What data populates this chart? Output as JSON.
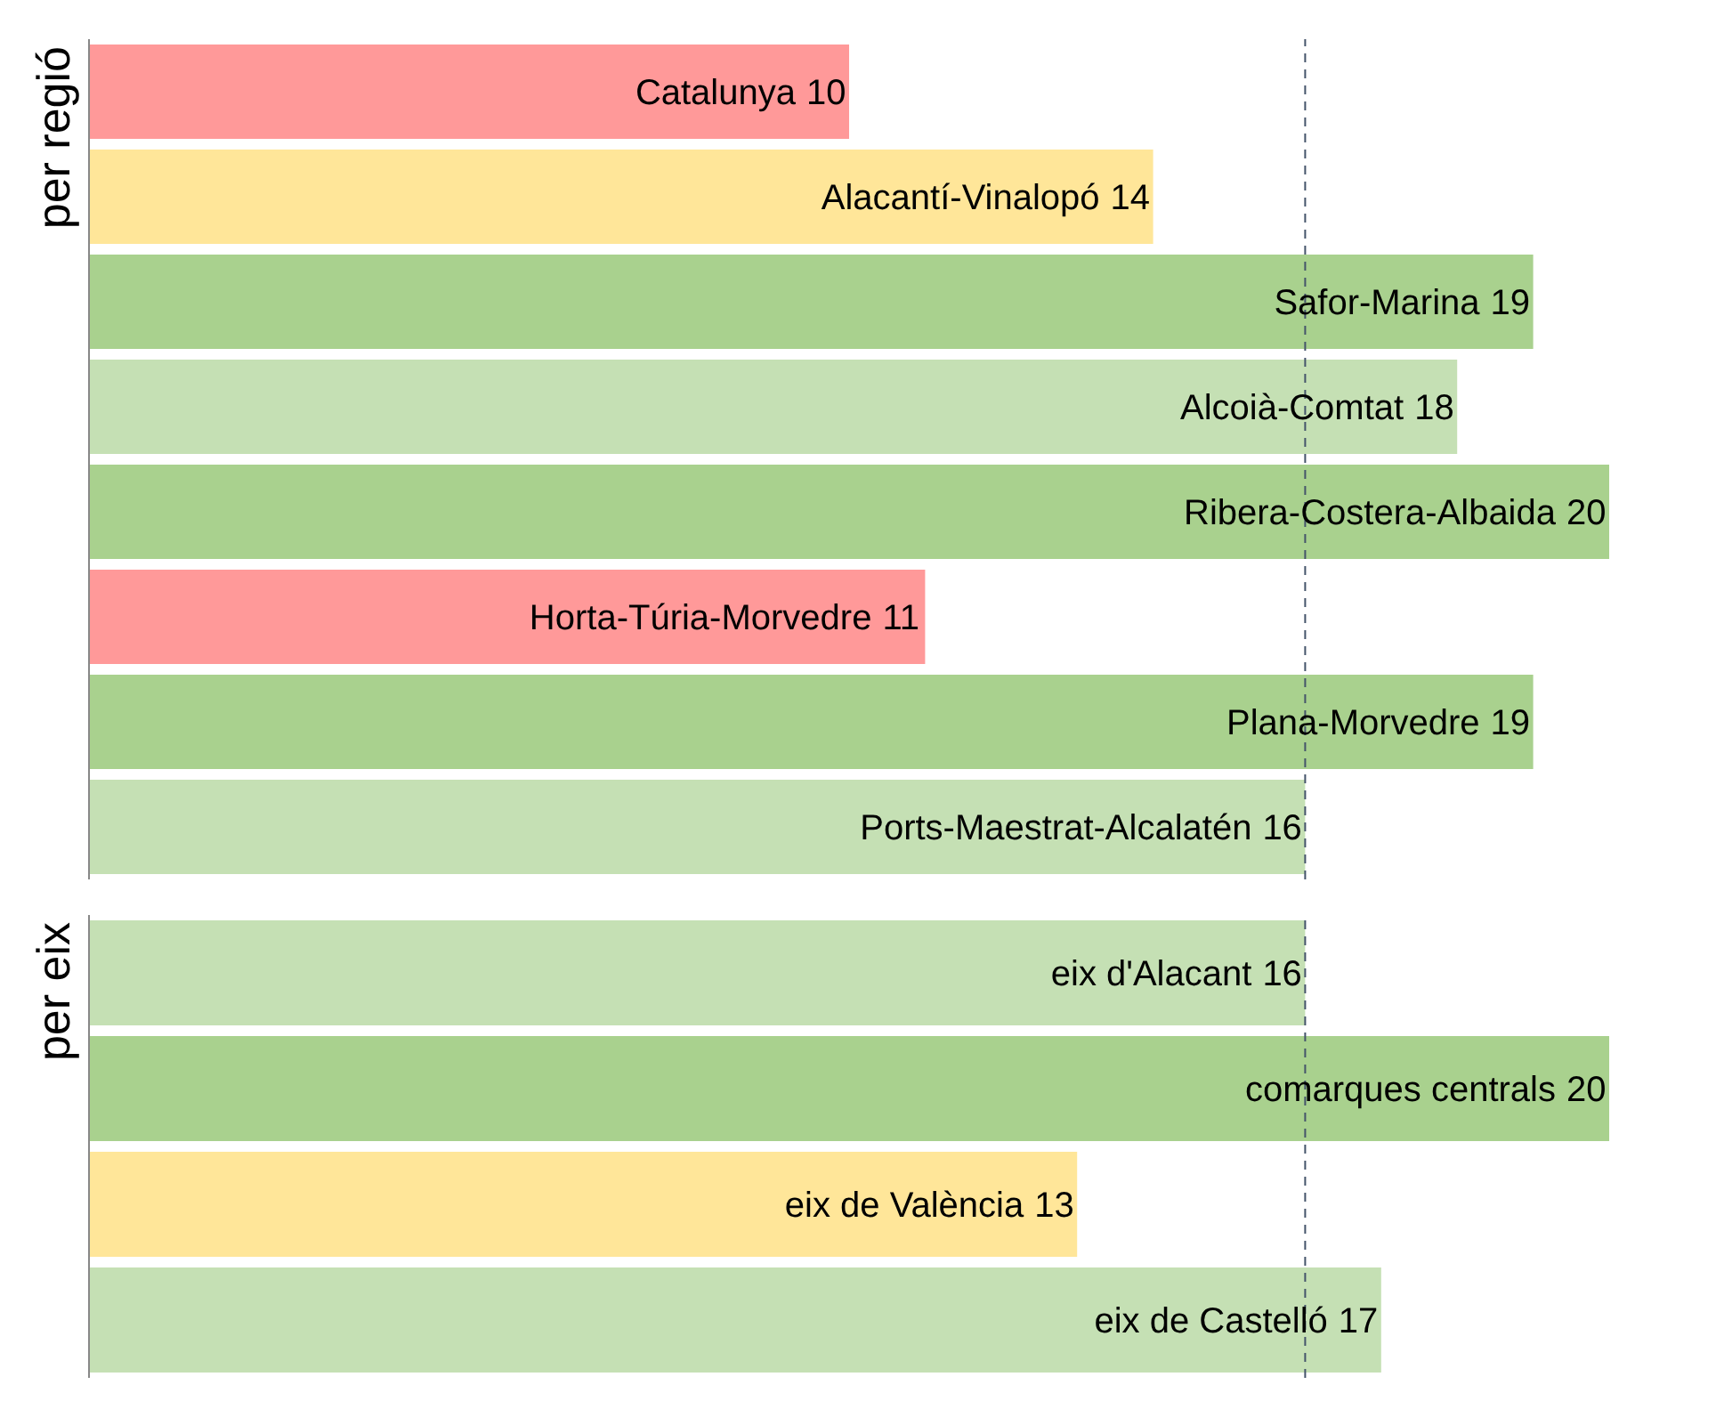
{
  "chart_data": [
    {
      "type": "bar",
      "orientation": "horizontal",
      "ylabel": "per regió",
      "categories": [
        "Catalunya",
        "Alacantí-Vinalopó",
        "Safor-Marina",
        "Alcoià-Comtat",
        "Ribera-Costera-Albaida",
        "Horta-Túria-Morvedre",
        "Plana-Morvedre",
        "Ports-Maestrat-Alcalatén"
      ],
      "values": [
        10,
        14,
        19,
        18,
        20,
        11,
        19,
        16
      ],
      "colors": [
        "#ff9999",
        "#ffe699",
        "#a9d18e",
        "#c5e0b4",
        "#a9d18e",
        "#ff9999",
        "#a9d18e",
        "#c5e0b4"
      ],
      "tick_labels": false,
      "data_labels": true,
      "ref_lines": [
        {
          "axis": "x",
          "value": 16,
          "line_style": "dashed",
          "color": "#44546a"
        }
      ]
    },
    {
      "type": "bar",
      "orientation": "horizontal",
      "ylabel": "per eix",
      "categories": [
        "eix d'Alacant",
        "comarques centrals",
        "eix de València",
        "eix de Castelló"
      ],
      "values": [
        16,
        20,
        13,
        17
      ],
      "colors": [
        "#c5e0b4",
        "#a9d18e",
        "#ffe699",
        "#c5e0b4"
      ],
      "tick_labels": false,
      "data_labels": true,
      "ref_lines": [
        {
          "axis": "x",
          "value": 16,
          "line_style": "dashed",
          "color": "#44546a"
        }
      ]
    }
  ]
}
